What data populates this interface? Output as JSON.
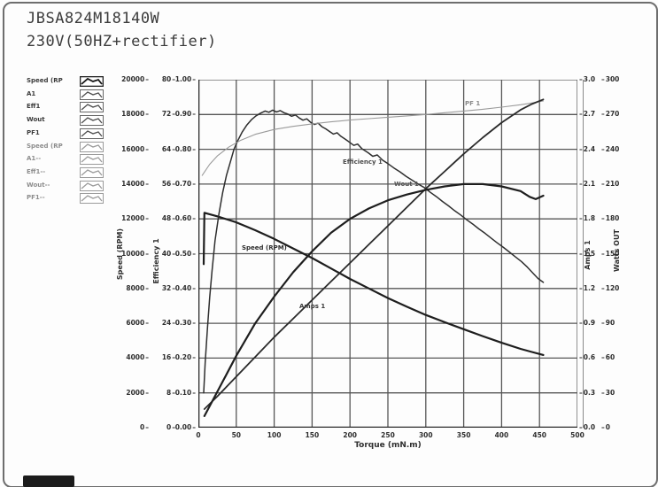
{
  "title": {
    "line1": "JBSA824M18140W",
    "line2": "230V(50HZ+rectifier)"
  },
  "legend": {
    "items": [
      {
        "label": "Speed (RP",
        "dim": false,
        "active": true
      },
      {
        "label": "A1",
        "dim": false,
        "active": false
      },
      {
        "label": "Eff1",
        "dim": false,
        "active": false
      },
      {
        "label": "Wout",
        "dim": false,
        "active": false
      },
      {
        "label": "PF1",
        "dim": false,
        "active": false
      },
      {
        "label": "Speed (RP",
        "dim": true,
        "active": false
      },
      {
        "label": "A1--",
        "dim": true,
        "active": false
      },
      {
        "label": "Eff1--",
        "dim": true,
        "active": false
      },
      {
        "label": "Wout--",
        "dim": true,
        "active": false
      },
      {
        "label": "PF1--",
        "dim": true,
        "active": false
      }
    ]
  },
  "chart_data": {
    "type": "line",
    "xlabel": "Torque (mN.m)",
    "x_range": [
      0,
      500
    ],
    "x_ticks": [
      "0",
      "50",
      "100",
      "150",
      "200",
      "250",
      "300",
      "350",
      "400",
      "450",
      "500"
    ],
    "grid": true,
    "axes": {
      "speed": {
        "title": "Speed (RPM)",
        "range": [
          0,
          20000
        ],
        "ticks": [
          "20000",
          "18000",
          "16000",
          "14000",
          "12000",
          "10000",
          "8000",
          "6000",
          "4000",
          "2000",
          "0"
        ]
      },
      "efficiency": {
        "title": "Efficiency 1",
        "range": [
          0,
          80
        ],
        "ticks": [
          "80",
          "72",
          "64",
          "56",
          "48",
          "40",
          "32",
          "24",
          "16",
          "8",
          "0"
        ]
      },
      "pf": {
        "title": "",
        "range": [
          0,
          1
        ],
        "ticks": [
          "1.00",
          "0.90",
          "0.80",
          "0.70",
          "0.60",
          "0.50",
          "0.40",
          "0.30",
          "0.20",
          "0.10",
          "0.00"
        ]
      },
      "amps": {
        "title": "Amps 1",
        "range": [
          0,
          3
        ],
        "ticks": [
          "3.0",
          "2.7",
          "2.4",
          "2.1",
          "1.8",
          "1.5",
          "1.2",
          "0.9",
          "0.6",
          "0.3",
          "0.0"
        ]
      },
      "watts": {
        "title": "Watts OUT",
        "range": [
          0,
          300
        ],
        "ticks": [
          "300",
          "270",
          "240",
          "210",
          "180",
          "150",
          "120",
          "90",
          "60",
          "30",
          "0"
        ]
      }
    },
    "series": [
      {
        "name": "Speed (RPM)",
        "axis": "speed",
        "color": "#1e1e1e",
        "width": 2.2,
        "points": [
          [
            7,
            9400
          ],
          [
            8,
            12350
          ],
          [
            12,
            12300
          ],
          [
            25,
            12150
          ],
          [
            50,
            11800
          ],
          [
            75,
            11350
          ],
          [
            100,
            10850
          ],
          [
            125,
            10300
          ],
          [
            150,
            9750
          ],
          [
            175,
            9150
          ],
          [
            200,
            8550
          ],
          [
            225,
            8000
          ],
          [
            250,
            7450
          ],
          [
            275,
            6950
          ],
          [
            300,
            6480
          ],
          [
            325,
            6060
          ],
          [
            350,
            5660
          ],
          [
            375,
            5260
          ],
          [
            400,
            4880
          ],
          [
            425,
            4530
          ],
          [
            440,
            4350
          ],
          [
            455,
            4180
          ]
        ]
      },
      {
        "name": "Efficiency 1",
        "axis": "efficiency",
        "color": "#2e2e2e",
        "width": 1.5,
        "points": [
          [
            7,
            8
          ],
          [
            9,
            15
          ],
          [
            12,
            23
          ],
          [
            15,
            30
          ],
          [
            18,
            36
          ],
          [
            22,
            43
          ],
          [
            27,
            49
          ],
          [
            32,
            54
          ],
          [
            37,
            58
          ],
          [
            42,
            61
          ],
          [
            47,
            64
          ],
          [
            52,
            66
          ],
          [
            58,
            68
          ],
          [
            64,
            69.6
          ],
          [
            70,
            70.8
          ],
          [
            76,
            71.7
          ],
          [
            82,
            72.3
          ],
          [
            88,
            72.8
          ],
          [
            93,
            72.5
          ],
          [
            98,
            73
          ],
          [
            103,
            72.6
          ],
          [
            108,
            72.9
          ],
          [
            113,
            72.4
          ],
          [
            118,
            72.1
          ],
          [
            123,
            71.6
          ],
          [
            128,
            71.9
          ],
          [
            133,
            71.2
          ],
          [
            138,
            70.7
          ],
          [
            143,
            71
          ],
          [
            148,
            70.2
          ],
          [
            153,
            69.7
          ],
          [
            158,
            70
          ],
          [
            163,
            69.2
          ],
          [
            168,
            68.7
          ],
          [
            173,
            68.1
          ],
          [
            178,
            67.5
          ],
          [
            183,
            67.8
          ],
          [
            188,
            67
          ],
          [
            193,
            66.4
          ],
          [
            198,
            65.8
          ],
          [
            205,
            64.9
          ],
          [
            210,
            65.2
          ],
          [
            216,
            64.1
          ],
          [
            224,
            63.2
          ],
          [
            230,
            62.4
          ],
          [
            236,
            62.7
          ],
          [
            243,
            61.5
          ],
          [
            250,
            60.7
          ],
          [
            258,
            59.7
          ],
          [
            266,
            58.8
          ],
          [
            274,
            57.8
          ],
          [
            282,
            56.9
          ],
          [
            290,
            56
          ],
          [
            298,
            55.2
          ],
          [
            306,
            54.1
          ],
          [
            314,
            53.1
          ],
          [
            322,
            52
          ],
          [
            330,
            51
          ],
          [
            338,
            49.9
          ],
          [
            346,
            48.9
          ],
          [
            354,
            47.8
          ],
          [
            362,
            46.8
          ],
          [
            370,
            45.7
          ],
          [
            378,
            44.7
          ],
          [
            386,
            43.6
          ],
          [
            394,
            42.5
          ],
          [
            402,
            41.5
          ],
          [
            410,
            40.4
          ],
          [
            418,
            39.3
          ],
          [
            426,
            38.2
          ],
          [
            434,
            36.9
          ],
          [
            442,
            35.4
          ],
          [
            448,
            34.3
          ],
          [
            455,
            33.4
          ]
        ]
      },
      {
        "name": "PF 1",
        "axis": "pf",
        "color": "#9a9a9a",
        "width": 1.1,
        "points": [
          [
            5,
            0.725
          ],
          [
            15,
            0.757
          ],
          [
            25,
            0.781
          ],
          [
            40,
            0.806
          ],
          [
            55,
            0.825
          ],
          [
            75,
            0.843
          ],
          [
            100,
            0.857
          ],
          [
            125,
            0.866
          ],
          [
            150,
            0.873
          ],
          [
            175,
            0.879
          ],
          [
            200,
            0.884
          ],
          [
            225,
            0.888
          ],
          [
            250,
            0.892
          ],
          [
            275,
            0.896
          ],
          [
            300,
            0.9
          ],
          [
            325,
            0.905
          ],
          [
            350,
            0.91
          ],
          [
            375,
            0.915
          ],
          [
            400,
            0.921
          ],
          [
            425,
            0.928
          ],
          [
            440,
            0.933
          ],
          [
            455,
            0.939
          ]
        ]
      },
      {
        "name": "Amps 1",
        "axis": "amps",
        "color": "#2a2a2a",
        "width": 1.8,
        "points": [
          [
            8,
            0.16
          ],
          [
            25,
            0.27
          ],
          [
            50,
            0.44
          ],
          [
            75,
            0.61
          ],
          [
            100,
            0.78
          ],
          [
            125,
            0.94
          ],
          [
            150,
            1.1
          ],
          [
            175,
            1.26
          ],
          [
            200,
            1.42
          ],
          [
            225,
            1.58
          ],
          [
            250,
            1.74
          ],
          [
            275,
            1.9
          ],
          [
            300,
            2.06
          ],
          [
            325,
            2.21
          ],
          [
            350,
            2.36
          ],
          [
            375,
            2.5
          ],
          [
            400,
            2.63
          ],
          [
            425,
            2.74
          ],
          [
            440,
            2.79
          ],
          [
            455,
            2.83
          ]
        ]
      },
      {
        "name": "Wout 1",
        "axis": "watts",
        "color": "#1e1e1e",
        "width": 2.2,
        "points": [
          [
            8,
            10
          ],
          [
            25,
            31
          ],
          [
            50,
            62
          ],
          [
            75,
            90
          ],
          [
            100,
            113
          ],
          [
            125,
            134
          ],
          [
            150,
            152
          ],
          [
            175,
            168
          ],
          [
            200,
            180
          ],
          [
            225,
            189
          ],
          [
            250,
            196
          ],
          [
            275,
            201
          ],
          [
            300,
            205
          ],
          [
            325,
            208
          ],
          [
            350,
            210
          ],
          [
            375,
            210
          ],
          [
            400,
            208
          ],
          [
            425,
            204
          ],
          [
            437,
            199
          ],
          [
            445,
            197
          ],
          [
            455,
            200
          ]
        ]
      }
    ],
    "annotations": [
      {
        "text": "Speed (RPM)",
        "x": 49,
        "y": 186,
        "color": "#2e2e2e"
      },
      {
        "text": "Efficiency 1",
        "x": 163,
        "y": 89,
        "color": "#4a4a4a"
      },
      {
        "text": "PF 1",
        "x": 301,
        "y": 23,
        "color": "#8a8a8a"
      },
      {
        "text": "Amps 1",
        "x": 114,
        "y": 252,
        "color": "#3a3a3a"
      },
      {
        "text": "Wout 1",
        "x": 221,
        "y": 114,
        "color": "#555555"
      }
    ]
  }
}
